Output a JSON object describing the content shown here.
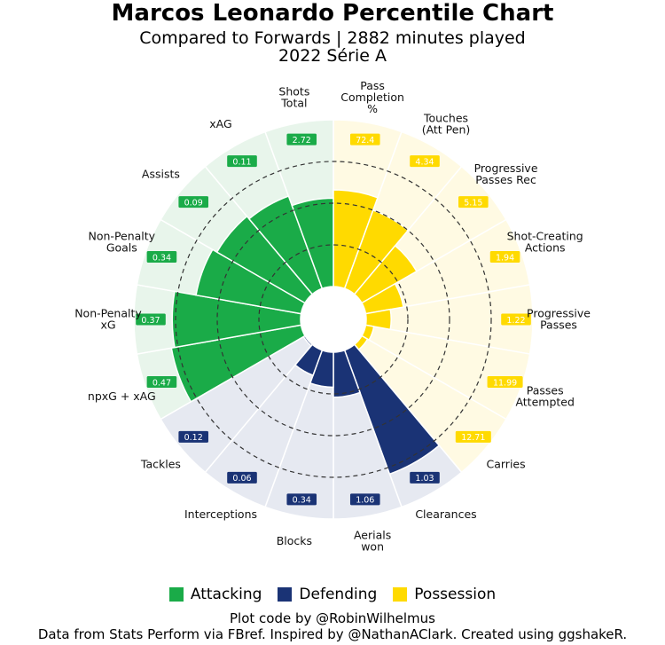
{
  "title": "Marcos Leonardo Percentile Chart",
  "subtitle_line1": "Compared to Forwards | 2882 minutes played",
  "subtitle_line2": "2022 Série A",
  "colors": {
    "Attacking": "#1aab48",
    "Attacking_bg": "#e8f5eb",
    "Defending": "#1a3375",
    "Defending_bg": "#e6e9f1",
    "Possession": "#ffda00",
    "Possession_bg": "#fffae3"
  },
  "legend": [
    {
      "label": "Attacking",
      "color": "#1aab48"
    },
    {
      "label": "Defending",
      "color": "#1a3375"
    },
    {
      "label": "Possession",
      "color": "#ffda00"
    }
  ],
  "footer_line1": "Plot code by @RobinWilhelmus",
  "footer_line2": "Data from Stats Perform via FBref. Inspired by @NathanAClark. Created using ggshakeR.",
  "chart_data": {
    "type": "polar-bar",
    "percentile_range": [
      0,
      100
    ],
    "gridlines": [
      25,
      50,
      75
    ],
    "items": [
      {
        "stat": "Pass\nCompletion\n%",
        "group": "Possession",
        "value": "72.4",
        "percentile": 58
      },
      {
        "stat": "Touches\n(Att Pen)",
        "group": "Possession",
        "value": "4.34",
        "percentile": 50
      },
      {
        "stat": "Progressive\nPasses Rec",
        "group": "Possession",
        "value": "5.15",
        "percentile": 38
      },
      {
        "stat": "Shot-Creating\nActions",
        "group": "Possession",
        "value": "1.94",
        "percentile": 23
      },
      {
        "stat": "Progressive\nPasses",
        "group": "Possession",
        "value": "1.22",
        "percentile": 15
      },
      {
        "stat": "Passes\nAttempted",
        "group": "Possession",
        "value": "11.99",
        "percentile": 5
      },
      {
        "stat": "Carries",
        "group": "Possession",
        "value": "12.71",
        "percentile": 4
      },
      {
        "stat": "Clearances",
        "group": "Defending",
        "value": "1.03",
        "percentile": 79
      },
      {
        "stat": "Aerials\nwon",
        "group": "Defending",
        "value": "1.06",
        "percentile": 27
      },
      {
        "stat": "Blocks",
        "group": "Defending",
        "value": "0.34",
        "percentile": 21
      },
      {
        "stat": "Interceptions",
        "group": "Defending",
        "value": "0.06",
        "percentile": 16
      },
      {
        "stat": "Tackles",
        "group": "Defending",
        "value": "0.12",
        "percentile": 1
      },
      {
        "stat": "npxG + xAG",
        "group": "Attacking",
        "value": "0.47",
        "percentile": 79
      },
      {
        "stat": "Non-Penalty\nxG",
        "group": "Attacking",
        "value": "0.37",
        "percentile": 77
      },
      {
        "stat": "Non-Penalty\nGoals",
        "group": "Attacking",
        "value": "0.34",
        "percentile": 64
      },
      {
        "stat": "Assists",
        "group": "Attacking",
        "value": "0.09",
        "percentile": 61
      },
      {
        "stat": "xAG",
        "group": "Attacking",
        "value": "0.11",
        "percentile": 59
      },
      {
        "stat": "Shots\nTotal",
        "group": "Attacking",
        "value": "2.72",
        "percentile": 53
      }
    ]
  }
}
